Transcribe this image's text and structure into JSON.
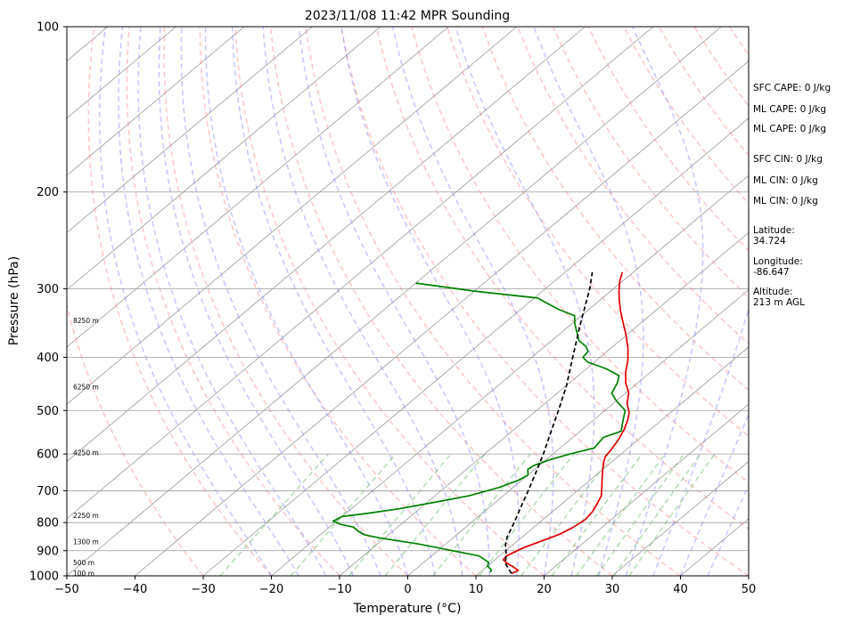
{
  "chart_data": {
    "type": "line",
    "title": "2023/11/08 11:42 MPR Sounding",
    "xlabel": "Temperature (°C)",
    "ylabel": "Pressure (hPa)",
    "xlim": [
      -50,
      50
    ],
    "ylim": [
      1000,
      100
    ],
    "y_scale": "log",
    "x_ticks": [
      -50,
      -40,
      -30,
      -20,
      -10,
      0,
      10,
      20,
      30,
      40,
      50
    ],
    "x_tick_labels": [
      "−50",
      "−40",
      "−30",
      "−20",
      "−10",
      "0",
      "10",
      "20",
      "30",
      "40",
      "50"
    ],
    "y_ticks": [
      1000,
      900,
      800,
      700,
      600,
      500,
      400,
      300,
      200,
      100
    ],
    "y_tick_labels": [
      "1000",
      "900",
      "800",
      "700",
      "600",
      "500",
      "400",
      "300",
      "200",
      "100"
    ],
    "grid": true,
    "skew_deg_per_log10_pressure": 96,
    "series": [
      {
        "kind": "temperature",
        "color": "#e00000",
        "points": [
          [
            14.8,
            990
          ],
          [
            15.3,
            978
          ],
          [
            13.6,
            960
          ],
          [
            12.5,
            950
          ],
          [
            11.2,
            935
          ],
          [
            11.0,
            920
          ],
          [
            12.0,
            890
          ],
          [
            13.5,
            865
          ],
          [
            15.0,
            840
          ],
          [
            15.8,
            815
          ],
          [
            16.2,
            790
          ],
          [
            15.9,
            765
          ],
          [
            15.2,
            740
          ],
          [
            14.4,
            715
          ],
          [
            13.0,
            690
          ],
          [
            11.5,
            665
          ],
          [
            10.0,
            640
          ],
          [
            8.8,
            620
          ],
          [
            8.1,
            605
          ],
          [
            7.8,
            590
          ],
          [
            7.1,
            565
          ],
          [
            6.1,
            540
          ],
          [
            5.0,
            520
          ],
          [
            4.0,
            505
          ],
          [
            2.0,
            485
          ],
          [
            0.5,
            465
          ],
          [
            -1.8,
            445
          ],
          [
            -3.7,
            425
          ],
          [
            -5.4,
            405
          ],
          [
            -7.5,
            385
          ],
          [
            -10.0,
            365
          ],
          [
            -12.8,
            345
          ],
          [
            -15.0,
            330
          ],
          [
            -17.0,
            316
          ],
          [
            -18.8,
            303
          ],
          [
            -20.5,
            290
          ],
          [
            -21.6,
            280
          ]
        ]
      },
      {
        "kind": "dewpoint",
        "color": "#008000",
        "points": [
          [
            11.5,
            985
          ],
          [
            11.2,
            975
          ],
          [
            10.0,
            960
          ],
          [
            9.5,
            945
          ],
          [
            7.0,
            920
          ],
          [
            1.0,
            895
          ],
          [
            -4.0,
            875
          ],
          [
            -8.0,
            862
          ],
          [
            -11.0,
            852
          ],
          [
            -13.5,
            842
          ],
          [
            -15.0,
            830
          ],
          [
            -16.5,
            815
          ],
          [
            -19.0,
            805
          ],
          [
            -20.5,
            795
          ],
          [
            -20.0,
            780
          ],
          [
            -17.0,
            770
          ],
          [
            -13.0,
            755
          ],
          [
            -9.0,
            735
          ],
          [
            -5.0,
            715
          ],
          [
            -2.0,
            690
          ],
          [
            -0.5,
            670
          ],
          [
            0.0,
            655
          ],
          [
            -1.0,
            640
          ],
          [
            -0.8,
            630
          ],
          [
            0.5,
            615
          ],
          [
            2.5,
            600
          ],
          [
            5.0,
            585
          ],
          [
            4.5,
            560
          ],
          [
            6.0,
            545
          ],
          [
            5.0,
            530
          ],
          [
            4.0,
            515
          ],
          [
            3.0,
            500
          ],
          [
            0.0,
            480
          ],
          [
            -2.0,
            465
          ],
          [
            -3.0,
            445
          ],
          [
            -4.0,
            432
          ],
          [
            -7.0,
            420
          ],
          [
            -11.0,
            408
          ],
          [
            -12.5,
            400
          ],
          [
            -12.8,
            390
          ],
          [
            -14.0,
            382
          ],
          [
            -16.0,
            373
          ],
          [
            -17.5,
            362
          ],
          [
            -19.5,
            348
          ],
          [
            -21.0,
            336
          ],
          [
            -24.5,
            327
          ],
          [
            -27.5,
            318
          ],
          [
            -29.5,
            312
          ],
          [
            -40.0,
            303
          ],
          [
            -50.0,
            293
          ]
        ]
      },
      {
        "kind": "parcel",
        "color": "#000000",
        "style": "dashed",
        "points": [
          [
            14.8,
            990
          ],
          [
            12.2,
            950
          ],
          [
            10.5,
            910
          ],
          [
            9.0,
            880
          ],
          [
            7.8,
            850
          ],
          [
            6.3,
            800
          ],
          [
            4.6,
            750
          ],
          [
            2.8,
            700
          ],
          [
            0.8,
            650
          ],
          [
            -1.4,
            600
          ],
          [
            -4.0,
            550
          ],
          [
            -6.8,
            500
          ],
          [
            -10.0,
            450
          ],
          [
            -14.0,
            400
          ],
          [
            -18.5,
            350
          ],
          [
            -23.5,
            300
          ],
          [
            -26.0,
            280
          ]
        ]
      }
    ],
    "height_labels": [
      {
        "text": "100 m",
        "p": 990
      },
      {
        "text": "500 m",
        "p": 948
      },
      {
        "text": "1300 m",
        "p": 867
      },
      {
        "text": "2250 m",
        "p": 778
      },
      {
        "text": "4250 m",
        "p": 598
      },
      {
        "text": "6250 m",
        "p": 453
      },
      {
        "text": "8250 m",
        "p": 343
      }
    ],
    "info": [
      "SFC CAPE: 0 J/kg",
      "ML CAPE: 0 J/kg",
      "ML CAPE: 0 J/kg",
      "SFC CIN: 0 J/kg",
      "ML CIN: 0 J/kg",
      "ML CIN: 0 J/kg",
      "Latitude:",
      "34.724",
      "Longitude:",
      "-86.647",
      "Altitude:",
      "213 m AGL"
    ],
    "colors": {
      "isotherm": "#9a9a9a",
      "dry_adiabat": "#ff8080",
      "moist_adiabat": "#8080ff",
      "mixing_ratio": "#66bb66"
    }
  }
}
